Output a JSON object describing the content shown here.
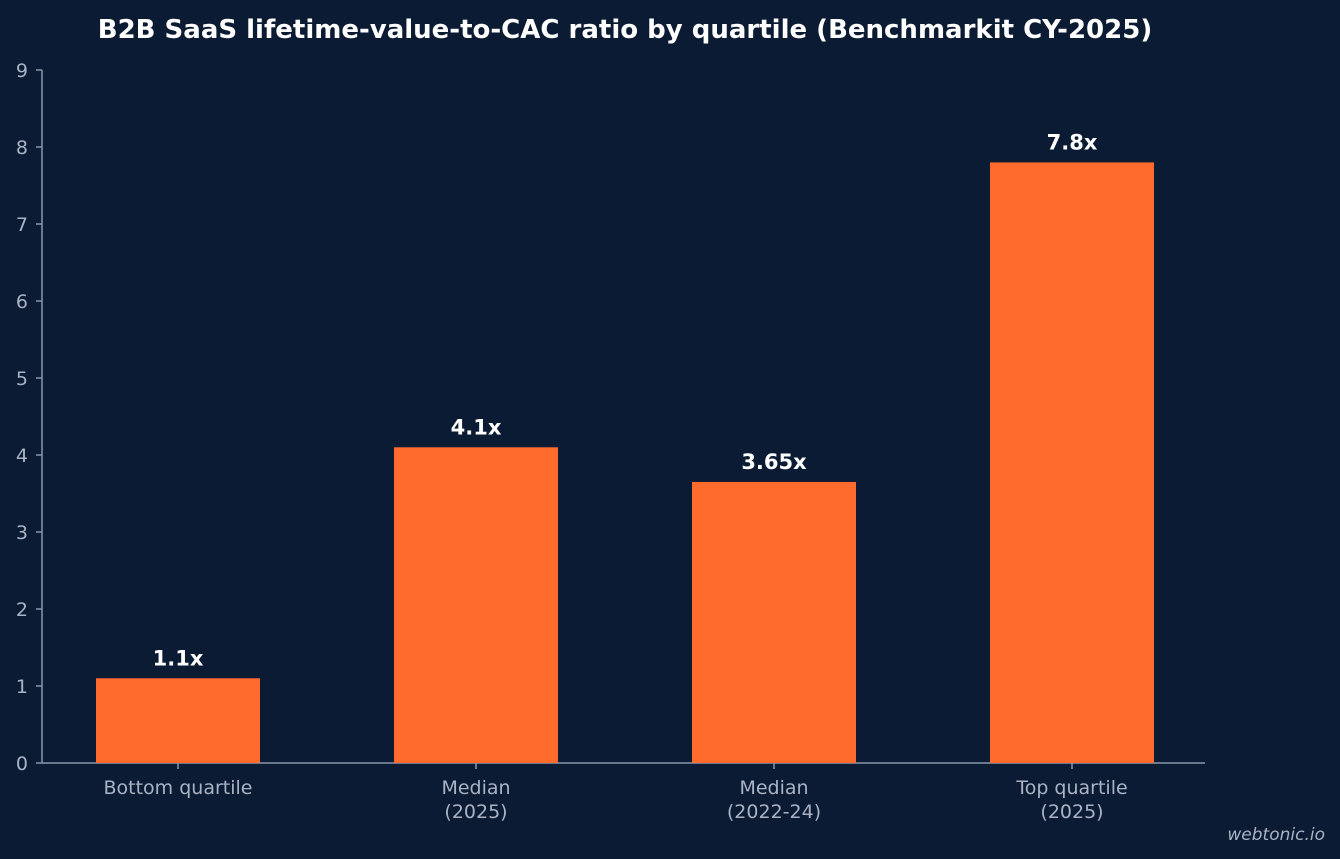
{
  "chart_data": {
    "type": "bar",
    "title": "B2B SaaS lifetime-value-to-CAC ratio by quartile (Benchmarkit CY-2025)",
    "xlabel": "",
    "ylabel": "",
    "categories": [
      [
        "Bottom quartile"
      ],
      [
        "Median",
        "(2025)"
      ],
      [
        "Median",
        "(2022-24)"
      ],
      [
        "Top quartile",
        "(2025)"
      ]
    ],
    "values": [
      1.1,
      4.1,
      3.65,
      7.8
    ],
    "data_labels": [
      "1.1x",
      "4.1x",
      "3.65x",
      "7.8x"
    ],
    "ylim": [
      0,
      9
    ],
    "yticks": [
      0,
      1,
      2,
      3,
      4,
      5,
      6,
      7,
      8,
      9
    ],
    "grid": false,
    "legend": "none",
    "colors": {
      "background": "#0b1b33",
      "bar": "#ff6b2c",
      "axis": "#8a97ab",
      "tick_text": "#a9b3c4",
      "title_text": "#ffffff",
      "data_label_text": "#ffffff"
    }
  },
  "watermark": "webtonic.io"
}
